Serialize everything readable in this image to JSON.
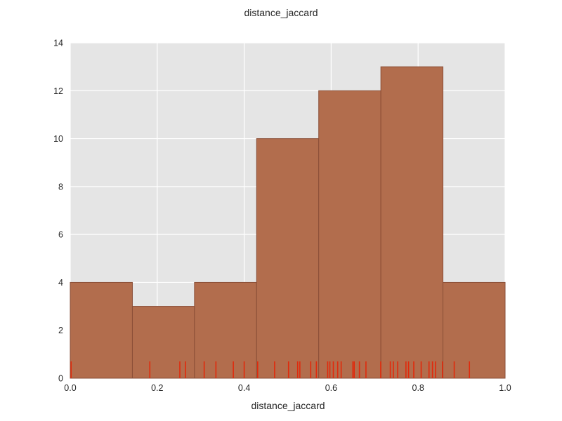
{
  "chart_data": {
    "type": "bar",
    "title": "distance_jaccard",
    "xlabel": "distance_jaccard",
    "ylabel": "",
    "xlim": [
      0.0,
      1.0
    ],
    "ylim": [
      0,
      14
    ],
    "grid": true,
    "bins": [
      {
        "x0": 0.0,
        "x1": 0.1429,
        "count": 4
      },
      {
        "x0": 0.1429,
        "x1": 0.2857,
        "count": 3
      },
      {
        "x0": 0.2857,
        "x1": 0.4286,
        "count": 4
      },
      {
        "x0": 0.4286,
        "x1": 0.5714,
        "count": 10
      },
      {
        "x0": 0.5714,
        "x1": 0.7143,
        "count": 12
      },
      {
        "x0": 0.7143,
        "x1": 0.8571,
        "count": 13
      },
      {
        "x0": 0.8571,
        "x1": 1.0,
        "count": 4
      }
    ],
    "rug_values": [
      0.002,
      0.183,
      0.252,
      0.265,
      0.308,
      0.335,
      0.375,
      0.4,
      0.431,
      0.47,
      0.502,
      0.523,
      0.528,
      0.553,
      0.566,
      0.592,
      0.597,
      0.605,
      0.615,
      0.623,
      0.65,
      0.653,
      0.665,
      0.68,
      0.714,
      0.736,
      0.743,
      0.753,
      0.772,
      0.778,
      0.79,
      0.807,
      0.825,
      0.833,
      0.84,
      0.856,
      0.883,
      0.918
    ],
    "xticks": [
      "0.0",
      "0.2",
      "0.4",
      "0.6",
      "0.8",
      "1.0"
    ],
    "yticks": [
      "0",
      "2",
      "4",
      "6",
      "8",
      "10",
      "12",
      "14"
    ],
    "colors": {
      "plot_background": "#e5e5e5",
      "grid": "#ffffff",
      "bar_fill": "#b26d4d",
      "bar_edge": "#8a4e37",
      "rug": "#e02a0c",
      "text": "#262626"
    }
  }
}
